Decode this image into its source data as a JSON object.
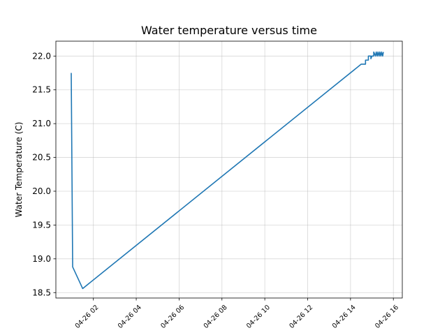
{
  "chart_data": {
    "type": "line",
    "title": "Water temperature versus time",
    "xlabel": "",
    "ylabel": "Water Temperature (C)",
    "x_axis": {
      "kind": "datetime",
      "range": [
        "04-26 00:15",
        "04-26 16:25"
      ],
      "ticks": [
        {
          "value": "04-26 02:00",
          "label": "04-26 02"
        },
        {
          "value": "04-26 04:00",
          "label": "04-26 04"
        },
        {
          "value": "04-26 06:00",
          "label": "04-26 06"
        },
        {
          "value": "04-26 08:00",
          "label": "04-26 08"
        },
        {
          "value": "04-26 10:00",
          "label": "04-26 10"
        },
        {
          "value": "04-26 12:00",
          "label": "04-26 12"
        },
        {
          "value": "04-26 14:00",
          "label": "04-26 14"
        },
        {
          "value": "04-26 16:00",
          "label": "04-26 16"
        }
      ]
    },
    "y_axis": {
      "range": [
        18.42,
        22.22
      ],
      "ticks": [
        18.5,
        19.0,
        19.5,
        20.0,
        20.5,
        21.0,
        21.5,
        22.0
      ],
      "tick_labels": [
        "18.5",
        "19.0",
        "19.5",
        "20.0",
        "20.5",
        "21.0",
        "21.5",
        "22.0"
      ]
    },
    "grid": true,
    "series": [
      {
        "color": "#1f77b4",
        "points": [
          {
            "x": "04-26 00:58",
            "y": 21.75
          },
          {
            "x": "04-26 01:02",
            "y": 18.88
          },
          {
            "x": "04-26 01:30",
            "y": 18.56
          },
          {
            "x": "04-26 14:30",
            "y": 21.88
          },
          {
            "x": "04-26 14:42",
            "y": 21.88
          },
          {
            "x": "04-26 14:42",
            "y": 21.94
          },
          {
            "x": "04-26 14:48",
            "y": 21.94
          },
          {
            "x": "04-26 14:50",
            "y": 21.94
          },
          {
            "x": "04-26 14:50",
            "y": 22.0
          },
          {
            "x": "04-26 14:57",
            "y": 22.0
          },
          {
            "x": "04-26 14:57",
            "y": 21.96
          },
          {
            "x": "04-26 15:00",
            "y": 22.0
          },
          {
            "x": "04-26 15:05",
            "y": 22.0
          },
          {
            "x": "04-26 15:05",
            "y": 22.06
          },
          {
            "x": "04-26 15:10",
            "y": 22.0
          },
          {
            "x": "04-26 15:12",
            "y": 22.06
          },
          {
            "x": "04-26 15:15",
            "y": 22.0
          },
          {
            "x": "04-26 15:17",
            "y": 22.06
          },
          {
            "x": "04-26 15:20",
            "y": 22.0
          },
          {
            "x": "04-26 15:22",
            "y": 22.06
          },
          {
            "x": "04-26 15:25",
            "y": 22.0
          },
          {
            "x": "04-26 15:27",
            "y": 22.06
          },
          {
            "x": "04-26 15:30",
            "y": 22.0
          },
          {
            "x": "04-26 15:32",
            "y": 22.06
          }
        ]
      }
    ]
  }
}
